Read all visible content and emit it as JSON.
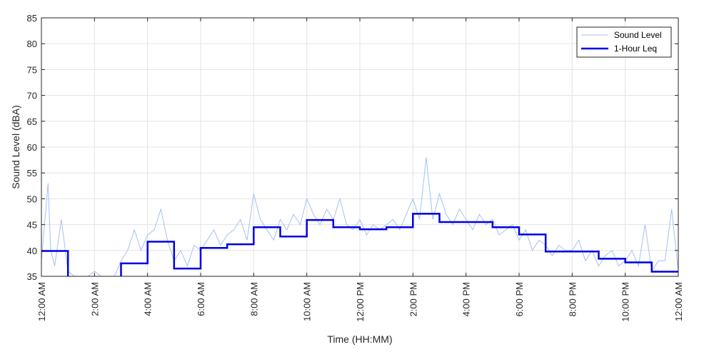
{
  "chart_data": {
    "type": "line",
    "xlabel": "Time (HH:MM)",
    "ylabel": "Sound Level (dBA)",
    "ylim": [
      35,
      85
    ],
    "xlim": [
      "12:00 AM",
      "12:00 AM (next day)"
    ],
    "y_ticks": [
      35,
      40,
      45,
      50,
      55,
      60,
      65,
      70,
      75,
      80,
      85
    ],
    "x_ticks": [
      "12:00 AM",
      "2:00 AM",
      "4:00 AM",
      "6:00 AM",
      "8:00 AM",
      "10:00 AM",
      "12:00 PM",
      "2:00 PM",
      "4:00 PM",
      "6:00 PM",
      "8:00 PM",
      "10:00 PM",
      "12:00 AM"
    ],
    "grid": true,
    "legend_position": "top-right",
    "colors": {
      "sound_level": "#a6c0f2",
      "leq": "#0000e6"
    },
    "series": [
      {
        "name": "Sound Level",
        "style": "thin-light-blue",
        "x_hours": [
          0,
          0.25,
          0.35,
          0.5,
          0.75,
          1.0,
          1.25,
          1.5,
          1.75,
          2.0,
          2.25,
          2.5,
          2.75,
          3.0,
          3.25,
          3.5,
          3.75,
          4.0,
          4.25,
          4.5,
          4.75,
          5.0,
          5.25,
          5.5,
          5.75,
          6.0,
          6.25,
          6.5,
          6.75,
          7.0,
          7.25,
          7.5,
          7.75,
          8.0,
          8.25,
          8.5,
          8.75,
          9.0,
          9.25,
          9.5,
          9.75,
          10.0,
          10.25,
          10.5,
          10.75,
          11.0,
          11.25,
          11.5,
          11.75,
          12.0,
          12.25,
          12.5,
          12.75,
          13.0,
          13.25,
          13.5,
          13.75,
          14.0,
          14.25,
          14.5,
          14.75,
          15.0,
          15.25,
          15.5,
          15.75,
          16.0,
          16.25,
          16.5,
          16.75,
          17.0,
          17.25,
          17.5,
          17.75,
          18.0,
          18.25,
          18.5,
          18.75,
          19.0,
          19.25,
          19.5,
          19.75,
          20.0,
          20.25,
          20.5,
          20.75,
          21.0,
          21.25,
          21.5,
          21.75,
          22.0,
          22.25,
          22.5,
          22.75,
          23.0,
          23.25,
          23.5,
          23.75,
          24.0
        ],
        "values": [
          38,
          53,
          40,
          37,
          46,
          36,
          35,
          35,
          35,
          36,
          35,
          35,
          35,
          38,
          40,
          44,
          40,
          43,
          44,
          48,
          42,
          38,
          40,
          37,
          41,
          40,
          42,
          44,
          41,
          43,
          44,
          46,
          42,
          51,
          46,
          44,
          42,
          46,
          44,
          47,
          45,
          50,
          47,
          45,
          48,
          46,
          50,
          45,
          44,
          46,
          43,
          45,
          44,
          45,
          46,
          44,
          47,
          50,
          46,
          58,
          46,
          51,
          47,
          45,
          48,
          46,
          44,
          47,
          45,
          46,
          43,
          44,
          45,
          42,
          44,
          40,
          42,
          41,
          39,
          41,
          40,
          40,
          42,
          38,
          40,
          37,
          39,
          40,
          37,
          38,
          40,
          37,
          45,
          36,
          38,
          38,
          48,
          36
        ]
      },
      {
        "name": "1-Hour Leq",
        "style": "step-thick-blue",
        "x_hours": [
          0,
          1,
          2,
          3,
          4,
          5,
          6,
          7,
          8,
          9,
          10,
          11,
          12,
          13,
          14,
          15,
          16,
          17,
          18,
          19,
          20,
          21,
          22,
          23
        ],
        "values": [
          39.9,
          34,
          34,
          37.5,
          41.7,
          36.5,
          40.5,
          41.2,
          44.5,
          42.7,
          45.9,
          44.5,
          44.1,
          44.5,
          47.1,
          45.5,
          45.5,
          44.5,
          43.1,
          39.8,
          39.8,
          38.4,
          37.7,
          35.9
        ]
      }
    ]
  }
}
